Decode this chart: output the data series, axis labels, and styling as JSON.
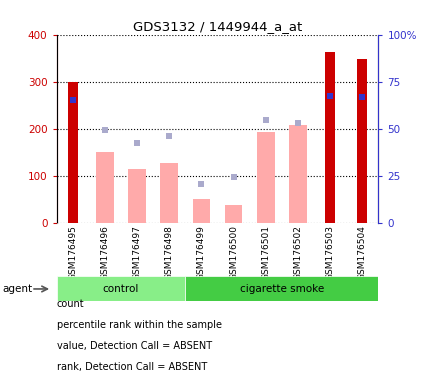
{
  "title": "GDS3132 / 1449944_a_at",
  "samples": [
    "GSM176495",
    "GSM176496",
    "GSM176497",
    "GSM176498",
    "GSM176499",
    "GSM176500",
    "GSM176501",
    "GSM176502",
    "GSM176503",
    "GSM176504"
  ],
  "groups": [
    "control",
    "control",
    "control",
    "control",
    "cigarette smoke",
    "cigarette smoke",
    "cigarette smoke",
    "cigarette smoke",
    "cigarette smoke",
    "cigarette smoke"
  ],
  "count_values": [
    300,
    null,
    null,
    null,
    null,
    null,
    null,
    null,
    362,
    348
  ],
  "percentile_rank_values": [
    260,
    null,
    null,
    null,
    null,
    null,
    null,
    null,
    270,
    267
  ],
  "value_absent": [
    null,
    150,
    115,
    126,
    50,
    37,
    192,
    208,
    null,
    null
  ],
  "rank_absent": [
    null,
    197,
    170,
    184,
    82,
    97,
    218,
    213,
    null,
    null
  ],
  "ylim_left": [
    0,
    400
  ],
  "ylim_right": [
    0,
    100
  ],
  "yticks_left": [
    0,
    100,
    200,
    300,
    400
  ],
  "yticks_right": [
    0,
    25,
    50,
    75,
    100
  ],
  "yticklabels_right": [
    "0",
    "25",
    "50",
    "75",
    "100%"
  ],
  "color_count": "#cc0000",
  "color_percentile": "#3333cc",
  "color_value_absent": "#ffaaaa",
  "color_rank_absent": "#aaaacc",
  "control_color": "#88ee88",
  "smoke_color": "#44cc44",
  "agent_label": "agent",
  "legend_items": [
    "count",
    "percentile rank within the sample",
    "value, Detection Call = ABSENT",
    "rank, Detection Call = ABSENT"
  ],
  "bar_width": 0.55,
  "figsize": [
    4.35,
    3.84
  ],
  "dpi": 100
}
